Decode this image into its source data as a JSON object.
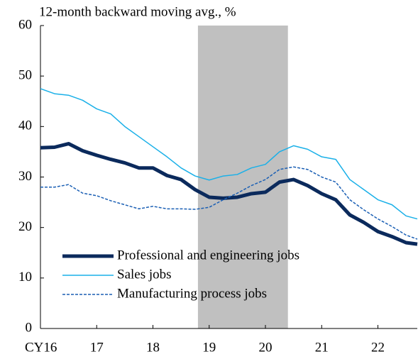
{
  "chart_data": {
    "type": "line",
    "title": "12-month backward moving avg., %",
    "x": [
      2016,
      2016.25,
      2016.5,
      2016.75,
      2017,
      2017.25,
      2017.5,
      2017.75,
      2018,
      2018.25,
      2018.5,
      2018.75,
      2019,
      2019.25,
      2019.5,
      2019.75,
      2020,
      2020.25,
      2020.5,
      2020.75,
      2021,
      2021.25,
      2021.5,
      2021.75,
      2022,
      2022.25,
      2022.5,
      2022.7
    ],
    "series": [
      {
        "name": "Professional and engineering jobs",
        "color": "#0b2a5c",
        "width": 5,
        "dashed": false,
        "values": [
          35.8,
          35.9,
          36.6,
          35.2,
          34.3,
          33.5,
          32.8,
          31.8,
          31.8,
          30.3,
          29.5,
          27.5,
          26.0,
          25.8,
          26.0,
          26.7,
          27.0,
          29.0,
          29.5,
          28.3,
          26.7,
          25.5,
          22.5,
          21.0,
          19.2,
          18.2,
          17.0,
          16.7
        ]
      },
      {
        "name": "Sales jobs",
        "color": "#1ab0e8",
        "width": 1.5,
        "dashed": false,
        "values": [
          47.5,
          46.5,
          46.2,
          45.2,
          43.5,
          42.5,
          40.0,
          38.0,
          36.0,
          34.0,
          31.8,
          30.2,
          29.4,
          30.2,
          30.5,
          31.8,
          32.5,
          35.0,
          36.2,
          35.5,
          34.0,
          33.5,
          29.5,
          27.5,
          25.5,
          24.5,
          22.3,
          21.7
        ]
      },
      {
        "name": "Manufacturing process jobs",
        "color": "#1a5fb4",
        "width": 1.5,
        "dashed": true,
        "values": [
          28.0,
          28.0,
          28.5,
          26.8,
          26.3,
          25.3,
          24.5,
          23.7,
          24.2,
          23.7,
          23.7,
          23.6,
          24.0,
          25.5,
          26.8,
          28.3,
          29.5,
          31.5,
          32.0,
          31.5,
          30.0,
          29.0,
          25.5,
          23.5,
          21.7,
          20.2,
          18.5,
          17.7
        ]
      }
    ],
    "xlim": [
      2016,
      2022.7
    ],
    "xticks": [
      {
        "value": 2016,
        "label": "CY16"
      },
      {
        "value": 2017,
        "label": "17"
      },
      {
        "value": 2018,
        "label": "18"
      },
      {
        "value": 2019,
        "label": "19"
      },
      {
        "value": 2020,
        "label": "20"
      },
      {
        "value": 2021,
        "label": "21"
      },
      {
        "value": 2022,
        "label": "22"
      }
    ],
    "ylim": [
      0,
      60
    ],
    "yticks": [
      0,
      10,
      20,
      30,
      40,
      50,
      60
    ],
    "shaded_region": [
      2018.8,
      2020.4
    ],
    "shade_color": "#c0c0c0",
    "legend": "lower left"
  }
}
